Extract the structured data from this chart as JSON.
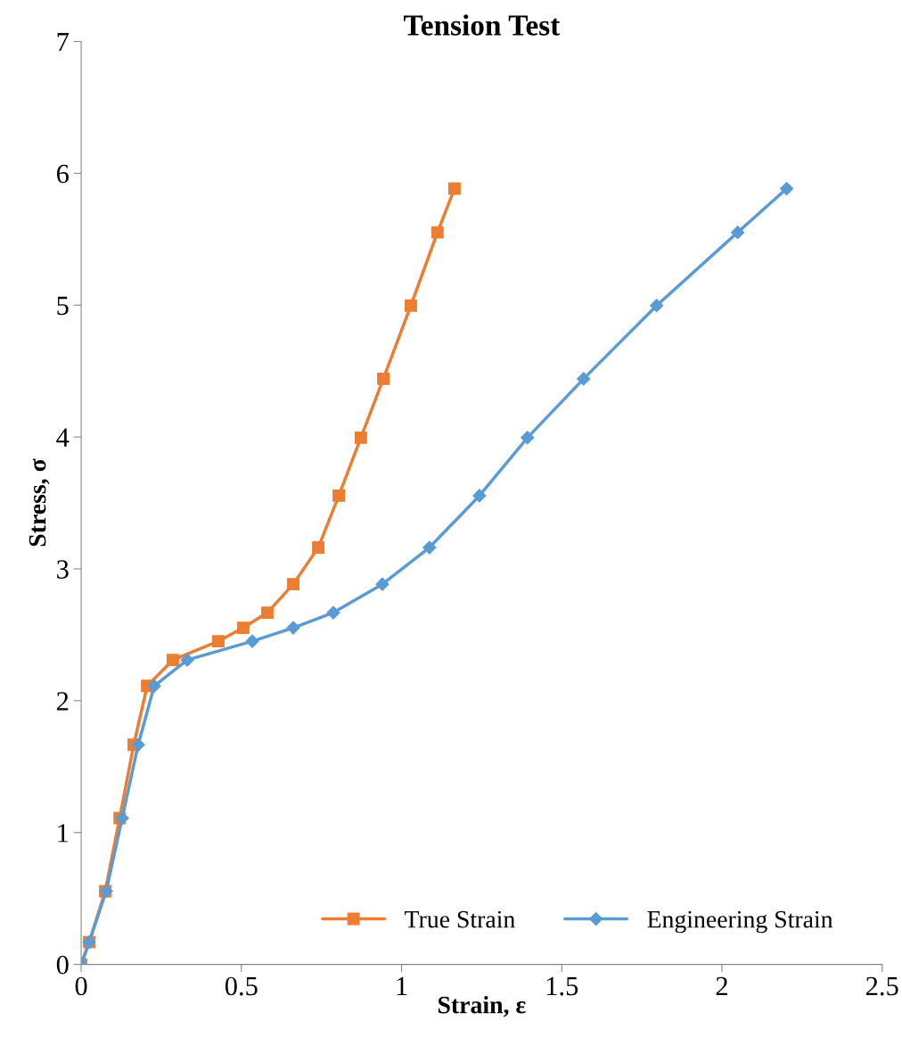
{
  "chart_data": {
    "type": "line",
    "title": "Tension Test",
    "xlabel": "Strain, ε",
    "ylabel": "Stress, σ",
    "xlim": [
      0,
      2.5
    ],
    "xticks": [
      0,
      0.5,
      1,
      1.5,
      2,
      2.5
    ],
    "ylim": [
      0,
      7
    ],
    "yticks": [
      0,
      1,
      2,
      3,
      4,
      5,
      6,
      7
    ],
    "grid": false,
    "legend": "bottom",
    "line_style": "solid",
    "series": [
      {
        "name": "True Strain",
        "color": "#ed7d31",
        "marker": "square",
        "x": [
          0,
          0.025,
          0.075,
          0.12,
          0.164,
          0.206,
          0.286,
          0.428,
          0.506,
          0.581,
          0.662,
          0.74,
          0.804,
          0.873,
          0.943,
          1.029,
          1.112,
          1.165
        ],
        "values": [
          0,
          0.169,
          0.555,
          1.11,
          1.666,
          2.112,
          2.309,
          2.451,
          2.553,
          2.668,
          2.884,
          3.162,
          3.555,
          3.995,
          4.441,
          4.997,
          5.552,
          5.884
        ]
      },
      {
        "name": "Engineering Strain",
        "color": "#5b9bd5",
        "marker": "diamond",
        "x": [
          0,
          0.025,
          0.078,
          0.128,
          0.178,
          0.228,
          0.331,
          0.534,
          0.662,
          0.787,
          0.94,
          1.087,
          1.243,
          1.393,
          1.568,
          1.796,
          2.049,
          2.202
        ],
        "values": [
          0,
          0.169,
          0.555,
          1.11,
          1.666,
          2.112,
          2.309,
          2.451,
          2.553,
          2.668,
          2.884,
          3.162,
          3.555,
          3.995,
          4.441,
          4.997,
          5.552,
          5.884
        ]
      }
    ]
  }
}
